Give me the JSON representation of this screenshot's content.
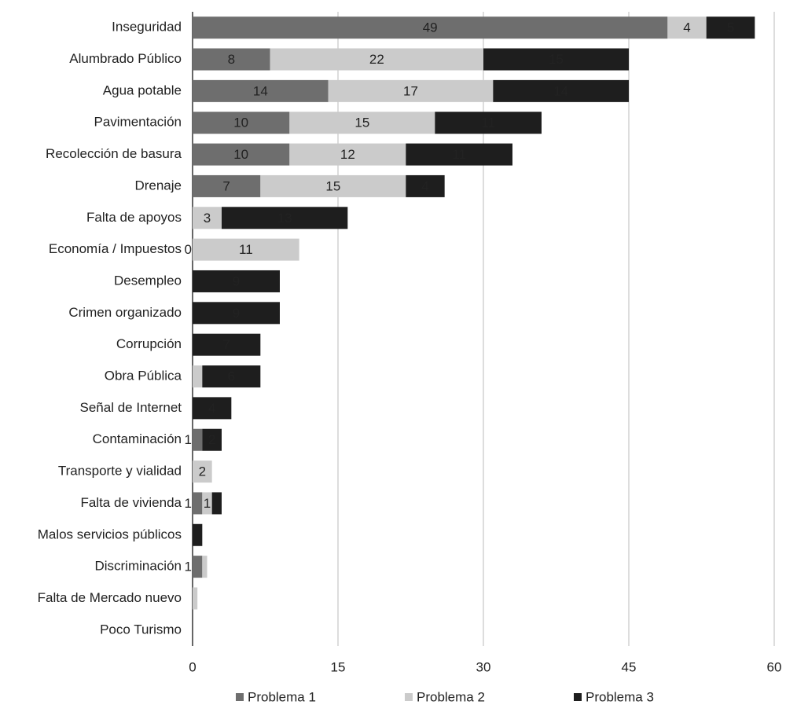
{
  "chart_data": {
    "type": "stacked-bar-horizontal",
    "categories": [
      "Inseguridad",
      "Alumbrado Público",
      "Agua potable",
      "Pavimentación",
      "Recolección de basura",
      "Drenaje",
      "Falta de apoyos",
      "Economía / Impuestos",
      "Desempleo",
      "Crimen organizado",
      "Corrupción",
      "Obra Pública",
      "Señal de Internet",
      "Contaminación",
      "Transporte y vialidad",
      "Falta de vivienda",
      "Malos servicios públicos",
      "Discriminación",
      "Falta de Mercado nuevo",
      "Poco Turismo"
    ],
    "series": [
      {
        "name": "Problema 1",
        "color": "#6e6e6e",
        "label_color": "#1a1a1a",
        "values": [
          49,
          8,
          14,
          10,
          10,
          7,
          null,
          0,
          null,
          null,
          null,
          null,
          null,
          1,
          null,
          1,
          null,
          1,
          null,
          null
        ],
        "value_labels": [
          "49",
          "8",
          "14",
          "10",
          "10",
          "7",
          null,
          "0",
          null,
          null,
          null,
          null,
          null,
          "1",
          null,
          "1",
          null,
          "1",
          null,
          null
        ]
      },
      {
        "name": "Problema 2",
        "color": "#cbcbcb",
        "label_color": "#ffffff",
        "values": [
          4,
          22,
          17,
          15,
          12,
          15,
          3,
          11,
          null,
          null,
          null,
          1,
          null,
          null,
          2,
          1,
          null,
          0.5,
          0.5,
          null
        ],
        "value_labels": [
          "4",
          "22",
          "17",
          "15",
          "12",
          "15",
          "3",
          "11",
          null,
          null,
          null,
          null,
          null,
          null,
          "2",
          "1",
          null,
          null,
          null,
          null
        ]
      },
      {
        "name": "Problema 3",
        "color": "#1e1e1e",
        "label_color": "#ffffff",
        "values": [
          5,
          15,
          14,
          11,
          11,
          4,
          13,
          null,
          9,
          9,
          7,
          6,
          4,
          2,
          null,
          1,
          1,
          null,
          null,
          null
        ],
        "value_labels": [
          "5",
          "15",
          "14",
          "11",
          "11",
          "4",
          "13",
          null,
          "9",
          "9",
          "7",
          "6",
          "4",
          "2",
          null,
          null,
          null,
          null,
          null,
          null
        ]
      }
    ],
    "xlim": [
      0,
      60
    ],
    "xticks": [
      0,
      15,
      30,
      45,
      60
    ],
    "grid": true,
    "legend": "bottom"
  }
}
